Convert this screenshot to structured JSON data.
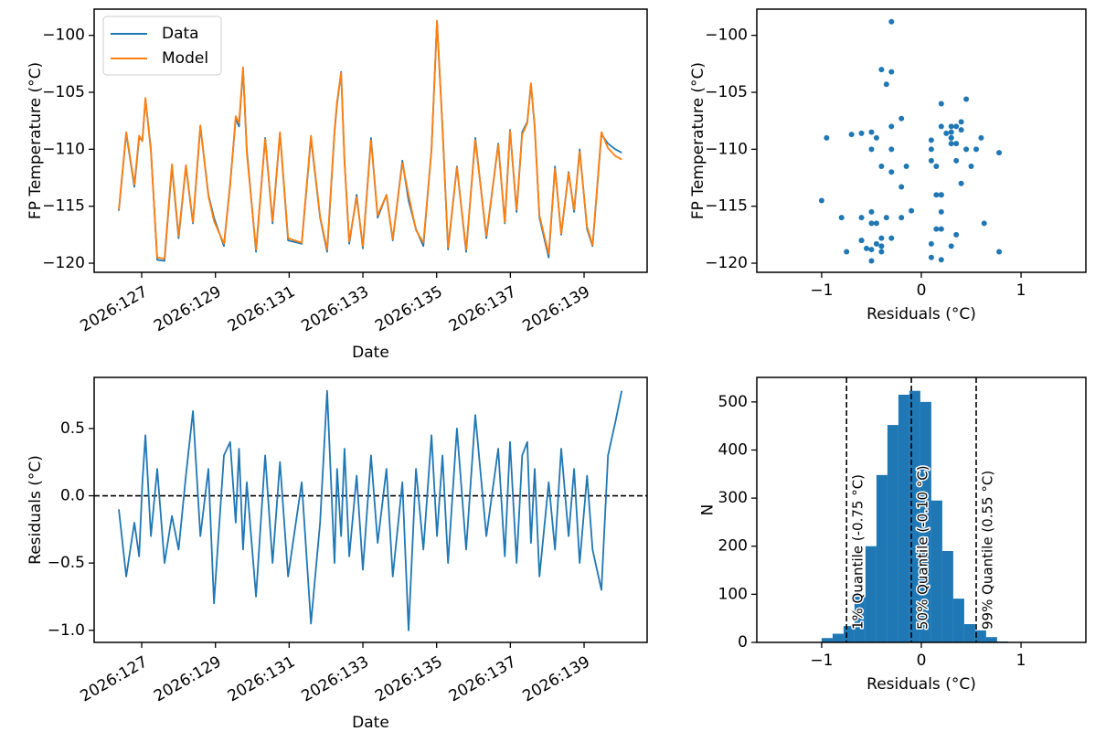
{
  "chart_data": [
    {
      "type": "line",
      "xlabel": "Date",
      "ylabel": "FP Temperature (°C)",
      "x": [
        126.38,
        126.58,
        126.8,
        126.93,
        127.02,
        127.1,
        127.25,
        127.42,
        127.62,
        127.82,
        128.0,
        128.2,
        128.39,
        128.59,
        128.81,
        128.96,
        129.23,
        129.4,
        129.55,
        129.64,
        129.75,
        129.85,
        130.1,
        130.35,
        130.55,
        130.75,
        130.97,
        131.34,
        131.59,
        131.84,
        132.03,
        132.23,
        132.3,
        132.41,
        132.5,
        132.63,
        132.83,
        133.0,
        133.22,
        133.4,
        133.64,
        133.81,
        134.07,
        134.24,
        134.44,
        134.64,
        134.86,
        135.01,
        135.16,
        135.31,
        135.55,
        135.8,
        136.05,
        136.35,
        136.67,
        136.85,
        136.99,
        137.17,
        137.32,
        137.46,
        137.56,
        137.66,
        137.79,
        138.04,
        138.21,
        138.38,
        138.58,
        138.73,
        138.88,
        139.08,
        139.23,
        139.47,
        139.65,
        139.85,
        140.02
      ],
      "series": [
        {
          "name": "Data",
          "color": "#1f77b4",
          "values": [
            -115.4,
            -108.6,
            -113.3,
            -109.0,
            -109.2,
            -105.6,
            -110.0,
            -119.7,
            -119.8,
            -111.5,
            -117.8,
            -111.5,
            -116.5,
            -108.0,
            -114.0,
            -116.0,
            -118.5,
            -113.0,
            -107.3,
            -108.0,
            -103.0,
            -110.0,
            -119.0,
            -109.0,
            -116.5,
            -108.6,
            -118.0,
            -118.3,
            -109.0,
            -116.0,
            -119.0,
            -108.5,
            -106.0,
            -103.2,
            -111.0,
            -118.3,
            -114.0,
            -118.7,
            -109.0,
            -116.0,
            -114.0,
            -118.0,
            -111.0,
            -114.5,
            -117.0,
            -118.5,
            -110.0,
            -98.8,
            -108.0,
            -118.8,
            -111.5,
            -119.0,
            -109.0,
            -117.8,
            -109.5,
            -116.5,
            -108.3,
            -115.5,
            -108.5,
            -107.6,
            -104.3,
            -108.0,
            -116.0,
            -119.5,
            -111.5,
            -117.5,
            -112.0,
            -115.5,
            -110.0,
            -117.0,
            -118.5,
            -108.7,
            -109.5,
            -110.0,
            -110.3
          ]
        },
        {
          "name": "Model",
          "color": "#ff7f0e",
          "values": [
            -115.3,
            -108.5,
            -113.1,
            -108.8,
            -109.3,
            -105.5,
            -110.2,
            -119.5,
            -119.6,
            -111.3,
            -117.6,
            -111.4,
            -116.4,
            -107.9,
            -114.1,
            -116.3,
            -118.3,
            -113.2,
            -107.1,
            -107.7,
            -102.8,
            -110.3,
            -118.8,
            -109.1,
            -116.3,
            -108.5,
            -117.8,
            -118.2,
            -108.8,
            -115.9,
            -118.8,
            -108.3,
            -105.8,
            -103.3,
            -111.1,
            -118.1,
            -114.2,
            -118.5,
            -109.2,
            -115.8,
            -114.0,
            -117.9,
            -111.2,
            -114.0,
            -117.1,
            -118.2,
            -110.1,
            -98.7,
            -108.2,
            -118.6,
            -111.6,
            -118.8,
            -109.2,
            -117.6,
            -109.6,
            -116.4,
            -108.4,
            -115.3,
            -108.7,
            -107.7,
            -104.2,
            -108.1,
            -115.8,
            -119.2,
            -111.7,
            -117.4,
            -112.1,
            -115.3,
            -110.2,
            -116.8,
            -118.4,
            -108.5,
            -109.9,
            -110.6,
            -110.9
          ]
        }
      ],
      "xlim": [
        125.71,
        140.71
      ],
      "ylim": [
        -120.8,
        -97.7
      ],
      "xticks": [
        {
          "value": 127,
          "label": "2026:127"
        },
        {
          "value": 129,
          "label": "2026:129"
        },
        {
          "value": 131,
          "label": "2026:131"
        },
        {
          "value": 133,
          "label": "2026:133"
        },
        {
          "value": 135,
          "label": "2026:135"
        },
        {
          "value": 137,
          "label": "2026:137"
        },
        {
          "value": 139,
          "label": "2026:139"
        }
      ],
      "yticks": [
        {
          "value": -120,
          "label": "−120"
        },
        {
          "value": -115,
          "label": "−115"
        },
        {
          "value": -110,
          "label": "−110"
        },
        {
          "value": -105,
          "label": "−105"
        },
        {
          "value": -100,
          "label": "−100"
        }
      ],
      "xtick_rotation": 30,
      "legend": "upper left"
    },
    {
      "type": "scatter",
      "xlabel": "Residuals (°C)",
      "ylabel": "FP Temperature (°C)",
      "color": "#1f77b4",
      "x": [
        -0.1,
        -0.6,
        -0.2,
        -0.45,
        0.1,
        0.45,
        -0.3,
        0.2,
        -0.5,
        -0.15,
        -0.4,
        0.15,
        0.63,
        -0.3,
        0.2,
        -0.8,
        0.3,
        0.4,
        -0.2,
        0.35,
        -0.4,
        0.1,
        -0.75,
        0.3,
        -0.5,
        0.25,
        -0.6,
        0.1,
        -0.95,
        -0.2,
        0.78,
        -0.5,
        0.2,
        -0.3,
        0.35,
        -0.45,
        0.15,
        -0.55,
        0.3,
        -0.35,
        0.2,
        -0.6,
        0.1,
        -1.0,
        0.2,
        -0.4,
        0.45,
        -0.3,
        0.3,
        -0.5,
        0.5,
        -0.4,
        0.6,
        -0.3,
        0.35,
        -0.45,
        0.4,
        -0.5,
        0.3,
        0.4,
        -0.35,
        0.2,
        -0.6,
        0.1,
        -0.4,
        0.35,
        -0.3,
        0.2,
        -0.5,
        0.15,
        -0.4,
        -0.7,
        0.3,
        0.55,
        0.78
      ],
      "y": [
        -115.4,
        -108.6,
        -113.3,
        -109.0,
        -109.2,
        -105.6,
        -110.0,
        -119.7,
        -119.8,
        -111.5,
        -117.8,
        -111.5,
        -116.5,
        -108.0,
        -114.0,
        -116.0,
        -118.5,
        -113.0,
        -107.3,
        -108.0,
        -103.0,
        -110.0,
        -119.0,
        -109.0,
        -116.5,
        -108.6,
        -118.0,
        -118.3,
        -109.0,
        -116.0,
        -119.0,
        -108.5,
        -106.0,
        -103.2,
        -111.0,
        -118.3,
        -114.0,
        -118.7,
        -109.0,
        -116.0,
        -114.0,
        -118.0,
        -111.0,
        -114.5,
        -117.0,
        -118.5,
        -110.0,
        -98.8,
        -108.0,
        -118.8,
        -111.5,
        -119.0,
        -109.0,
        -117.8,
        -109.5,
        -116.5,
        -108.3,
        -115.5,
        -108.5,
        -107.6,
        -104.3,
        -108.0,
        -116.0,
        -119.5,
        -111.5,
        -117.5,
        -112.0,
        -115.5,
        -110.0,
        -117.0,
        -118.5,
        -108.7,
        -109.5,
        -110.0,
        -110.3
      ],
      "xlim": [
        -1.65,
        1.65
      ],
      "ylim": [
        -120.8,
        -97.7
      ],
      "xticks": [
        {
          "value": -1,
          "label": "−1"
        },
        0,
        1
      ],
      "yticks": [
        {
          "value": -120,
          "label": "−120"
        },
        {
          "value": -115,
          "label": "−115"
        },
        {
          "value": -110,
          "label": "−110"
        },
        {
          "value": -105,
          "label": "−105"
        },
        {
          "value": -100,
          "label": "−100"
        }
      ]
    },
    {
      "type": "line",
      "xlabel": "Date",
      "ylabel": "Residuals (°C)",
      "color": "#1f77b4",
      "hline": 0,
      "x": [
        126.38,
        126.58,
        126.8,
        126.93,
        127.02,
        127.1,
        127.25,
        127.42,
        127.62,
        127.82,
        128.0,
        128.2,
        128.39,
        128.59,
        128.81,
        128.96,
        129.23,
        129.4,
        129.55,
        129.64,
        129.75,
        129.85,
        130.1,
        130.35,
        130.55,
        130.75,
        130.97,
        131.34,
        131.59,
        131.84,
        132.03,
        132.23,
        132.3,
        132.41,
        132.5,
        132.63,
        132.83,
        133.0,
        133.22,
        133.4,
        133.64,
        133.81,
        134.07,
        134.24,
        134.44,
        134.64,
        134.86,
        135.01,
        135.16,
        135.31,
        135.55,
        135.8,
        136.05,
        136.35,
        136.67,
        136.85,
        136.99,
        137.17,
        137.32,
        137.46,
        137.56,
        137.66,
        137.79,
        138.04,
        138.21,
        138.38,
        138.58,
        138.73,
        138.88,
        139.08,
        139.23,
        139.47,
        139.65,
        139.85,
        140.02
      ],
      "values": [
        -0.1,
        -0.6,
        -0.2,
        -0.45,
        0.1,
        0.45,
        -0.3,
        0.2,
        -0.5,
        -0.15,
        -0.4,
        0.15,
        0.63,
        -0.3,
        0.2,
        -0.8,
        0.3,
        0.4,
        -0.2,
        0.35,
        -0.4,
        0.1,
        -0.75,
        0.3,
        -0.5,
        0.25,
        -0.6,
        0.1,
        -0.95,
        -0.2,
        0.78,
        -0.5,
        0.2,
        -0.3,
        0.35,
        -0.45,
        0.15,
        -0.55,
        0.3,
        -0.35,
        0.2,
        -0.6,
        0.1,
        -1.0,
        0.2,
        -0.4,
        0.45,
        -0.3,
        0.3,
        -0.5,
        0.5,
        -0.4,
        0.6,
        -0.3,
        0.35,
        -0.45,
        0.4,
        -0.5,
        0.3,
        0.4,
        -0.35,
        0.2,
        -0.6,
        0.1,
        -0.4,
        0.35,
        -0.3,
        0.2,
        -0.5,
        0.15,
        -0.4,
        -0.7,
        0.3,
        0.55,
        0.78
      ],
      "xlim": [
        125.71,
        140.71
      ],
      "ylim": [
        -1.09,
        0.88
      ],
      "xticks": [
        {
          "value": 127,
          "label": "2026:127"
        },
        {
          "value": 129,
          "label": "2026:129"
        },
        {
          "value": 131,
          "label": "2026:131"
        },
        {
          "value": 133,
          "label": "2026:133"
        },
        {
          "value": 135,
          "label": "2026:135"
        },
        {
          "value": 137,
          "label": "2026:137"
        },
        {
          "value": 139,
          "label": "2026:139"
        }
      ],
      "yticks": [
        {
          "value": -1,
          "label": "−1.0"
        },
        {
          "value": -0.5,
          "label": "−0.5"
        },
        {
          "value": 0,
          "label": "0.0"
        },
        0.5
      ],
      "xtick_rotation": 30
    },
    {
      "type": "histogram",
      "xlabel": "Residuals (°C)",
      "ylabel": "N",
      "color": "#1f77b4",
      "bins": [
        -1.0,
        -0.89,
        -0.78,
        -0.67,
        -0.56,
        -0.45,
        -0.34,
        -0.23,
        -0.12,
        -0.01,
        0.1,
        0.21,
        0.32,
        0.43,
        0.54,
        0.65,
        0.76,
        0.87
      ],
      "counts": [
        9,
        18,
        34,
        95,
        200,
        348,
        452,
        515,
        523,
        500,
        295,
        190,
        91,
        38,
        25,
        11,
        2
      ],
      "vlines": [
        {
          "value": -0.75,
          "label": "1% Quantile (-0.75 °C)"
        },
        {
          "value": -0.1,
          "label": "50% Quantile (-0.10 °C)"
        },
        {
          "value": 0.55,
          "label": "99% Quantile (0.55 °C)"
        }
      ],
      "xlim": [
        -1.65,
        1.65
      ],
      "ylim": [
        0,
        551
      ],
      "xticks": [
        {
          "value": -1,
          "label": "−1"
        },
        0,
        1
      ],
      "yticks": [
        0,
        100,
        200,
        300,
        400,
        500
      ]
    }
  ]
}
